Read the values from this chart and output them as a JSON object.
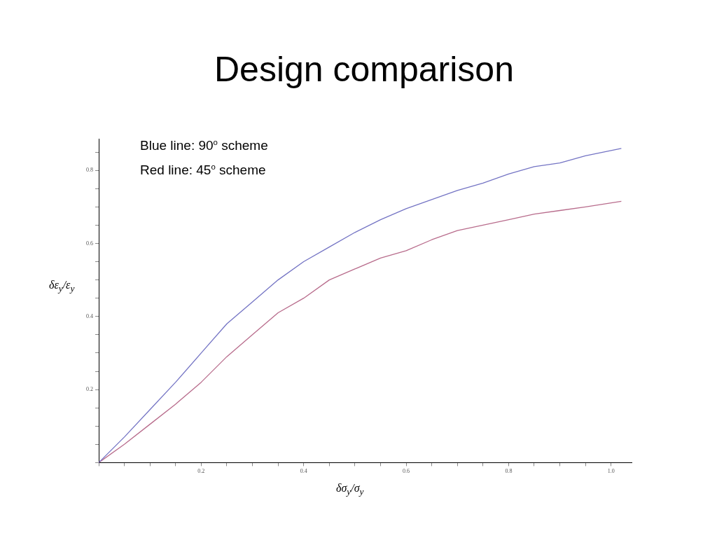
{
  "chart_data": {
    "type": "line",
    "title": "Design comparison",
    "annotations": [
      "Blue line: 90$^{o}$ scheme",
      "Red line: 45$^{o}$ scheme"
    ],
    "xlabel": "δσ$_{y}$/σ$_{y}$",
    "ylabel": "δε$_{y}$/ε$_{y}$",
    "x": [
      0,
      0.05,
      0.1,
      0.15,
      0.2,
      0.25,
      0.3,
      0.35,
      0.4,
      0.45,
      0.5,
      0.55,
      0.6,
      0.65,
      0.7,
      0.75,
      0.8,
      0.85,
      0.9,
      0.95,
      1.02
    ],
    "series": [
      {
        "color": "#7474c4",
        "values": [
          0,
          0.07,
          0.145,
          0.22,
          0.3,
          0.38,
          0.44,
          0.5,
          0.55,
          0.59,
          0.63,
          0.665,
          0.695,
          0.72,
          0.745,
          0.765,
          0.79,
          0.81,
          0.82,
          0.84,
          0.86
        ]
      },
      {
        "color": "#b86c8c",
        "values": [
          0,
          0.05,
          0.105,
          0.16,
          0.22,
          0.29,
          0.35,
          0.41,
          0.45,
          0.5,
          0.53,
          0.56,
          0.58,
          0.61,
          0.635,
          0.65,
          0.665,
          0.68,
          0.69,
          0.7,
          0.715
        ]
      }
    ],
    "xlim": [
      0,
      1.04
    ],
    "ylim": [
      0,
      0.885
    ],
    "xticks": [
      {
        "value": 0,
        "label": null
      },
      {
        "value": 0.05,
        "label": null
      },
      {
        "value": 0.1,
        "label": null
      },
      {
        "value": 0.15,
        "label": null
      },
      0.2,
      {
        "value": 0.25,
        "label": null
      },
      {
        "value": 0.3,
        "label": null
      },
      {
        "value": 0.35,
        "label": null
      },
      0.4,
      {
        "value": 0.45,
        "label": null
      },
      {
        "value": 0.5,
        "label": null
      },
      {
        "value": 0.55,
        "label": null
      },
      0.6,
      {
        "value": 0.65,
        "label": null
      },
      {
        "value": 0.7,
        "label": null
      },
      {
        "value": 0.75,
        "label": null
      },
      0.8,
      {
        "value": 0.85,
        "label": null
      },
      {
        "value": 0.9,
        "label": null
      },
      {
        "value": 0.95,
        "label": null
      },
      {
        "value": 1.0,
        "label": "1.0"
      }
    ],
    "yticks": [
      {
        "value": 0,
        "label": null
      },
      {
        "value": 0.05,
        "label": null
      },
      {
        "value": 0.1,
        "label": null
      },
      {
        "value": 0.15,
        "label": null
      },
      0.2,
      {
        "value": 0.25,
        "label": null
      },
      {
        "value": 0.3,
        "label": null
      },
      {
        "value": 0.35,
        "label": null
      },
      0.4,
      {
        "value": 0.45,
        "label": null
      },
      {
        "value": 0.5,
        "label": null
      },
      {
        "value": 0.55,
        "label": null
      },
      0.6,
      {
        "value": 0.65,
        "label": null
      },
      {
        "value": 0.7,
        "label": null
      },
      {
        "value": 0.75,
        "label": null
      },
      0.8,
      {
        "value": 0.85,
        "label": null
      }
    ],
    "marker": "none",
    "line_style": "solid"
  }
}
